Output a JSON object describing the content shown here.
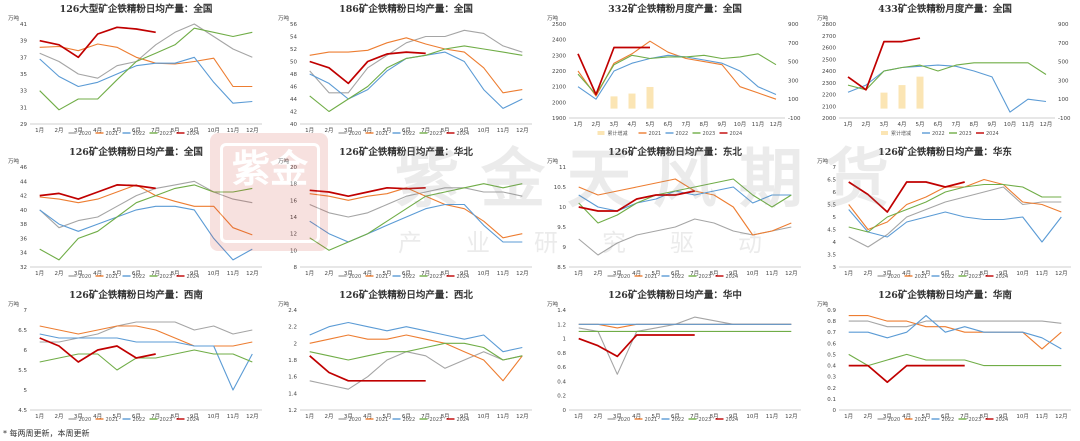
{
  "colors": {
    "2020": "#a5a5a5",
    "2021": "#ed7d31",
    "2022": "#5b9bd5",
    "2023": "#70ad47",
    "2024": "#c00000",
    "bar": "#fbe5b4"
  },
  "months": [
    "1月",
    "2月",
    "3月",
    "4月",
    "5月",
    "6月",
    "7月",
    "8月",
    "9月",
    "10月",
    "11月",
    "12月"
  ],
  "legend_years": [
    "2020",
    "2021",
    "2022",
    "2023",
    "2024"
  ],
  "unit": "万吨",
  "watermark": {
    "main": "紫金天风期货",
    "sub": "产业研究驱动",
    "seal": "紫金"
  },
  "footnote": "* 每两周更新，本周更新",
  "chart_data": [
    {
      "type": "line",
      "title": "126大型矿企铁精粉日均产量：全国",
      "ylim": [
        29,
        41
      ],
      "yticks": [
        29,
        31,
        33,
        35,
        37,
        39,
        41
      ],
      "series": [
        {
          "name": "2020",
          "values": [
            37.5,
            36.5,
            35,
            34.5,
            36,
            36.5,
            38.5,
            40,
            41,
            39.5,
            38,
            37
          ]
        },
        {
          "name": "2021",
          "values": [
            38.2,
            38.3,
            37.8,
            38.6,
            38.2,
            37,
            36.3,
            36.2,
            36.5,
            36.9,
            33.5,
            33.5
          ]
        },
        {
          "name": "2022",
          "values": [
            36.8,
            34.7,
            33.5,
            34,
            35,
            36,
            36.3,
            36.3,
            37,
            34,
            31.5,
            31.7
          ]
        },
        {
          "name": "2023",
          "values": [
            33,
            30.7,
            32,
            32,
            34.3,
            36.5,
            37.5,
            38.5,
            40.5,
            40,
            39.5,
            40
          ]
        },
        {
          "name": "2024",
          "values": [
            39,
            38.5,
            37,
            39.8,
            40.6,
            40.4,
            40
          ]
        }
      ]
    },
    {
      "type": "line",
      "title": "186矿企铁精粉日均产量：全国",
      "ylim": [
        40,
        56
      ],
      "yticks": [
        40,
        42,
        44,
        46,
        48,
        50,
        52,
        54,
        56
      ],
      "series": [
        {
          "name": "2020",
          "values": [
            48.5,
            45,
            45,
            49,
            51,
            53,
            54,
            54,
            55,
            54.5,
            52.5,
            51.5
          ]
        },
        {
          "name": "2021",
          "values": [
            51,
            51.5,
            51.5,
            51.8,
            53,
            53.8,
            52.8,
            52,
            51.5,
            49,
            45,
            45.5
          ]
        },
        {
          "name": "2022",
          "values": [
            48,
            46.5,
            44,
            45.5,
            48.5,
            50.5,
            51,
            51.5,
            50,
            45.5,
            42.5,
            44
          ]
        },
        {
          "name": "2023",
          "values": [
            44.5,
            42,
            44,
            46,
            49,
            50.5,
            51,
            52,
            52.5,
            52,
            51.5,
            51
          ]
        },
        {
          "name": "2024",
          "values": [
            50,
            49,
            46.5,
            50,
            51.2,
            51.5,
            51.3
          ]
        }
      ]
    },
    {
      "type": "bar+line",
      "title": "332矿企铁精粉月度产量：全国",
      "ylim": [
        1900,
        2500
      ],
      "yticks": [
        1900,
        2000,
        2100,
        2200,
        2300,
        2400,
        2500
      ],
      "y2ticks": [
        -100,
        100,
        300,
        500,
        700,
        900
      ],
      "bar_label": "累计增减",
      "bars": [
        0,
        0,
        130,
        160,
        230
      ],
      "series": [
        {
          "name": "2021",
          "values": [
            2200,
            2040,
            2250,
            2310,
            2390,
            2320,
            2280,
            2260,
            2240,
            2100,
            2060,
            2020
          ]
        },
        {
          "name": "2022",
          "values": [
            2100,
            2020,
            2200,
            2250,
            2280,
            2300,
            2290,
            2270,
            2250,
            2200,
            2100,
            2050
          ]
        },
        {
          "name": "2023",
          "values": [
            2180,
            2050,
            2240,
            2300,
            2280,
            2290,
            2290,
            2300,
            2280,
            2290,
            2310,
            2240
          ]
        },
        {
          "name": "2024",
          "values": [
            2310,
            2050,
            2350,
            2350,
            2350
          ]
        }
      ]
    },
    {
      "type": "bar+line",
      "title": "433矿企铁精粉月度产量：全国",
      "ylim": [
        2000,
        2800
      ],
      "yticks": [
        2000,
        2100,
        2200,
        2300,
        2400,
        2500,
        2600,
        2700,
        2800
      ],
      "y2ticks": [
        -100,
        100,
        300,
        500,
        700,
        900
      ],
      "bar_label": "累计增减",
      "bars": [
        0,
        0,
        170,
        250,
        340
      ],
      "series": [
        {
          "name": "2022",
          "values": [
            2220,
            2280,
            2400,
            2430,
            2440,
            2450,
            2440,
            2400,
            2350,
            2050,
            2160,
            2140
          ]
        },
        {
          "name": "2023",
          "values": [
            2280,
            2240,
            2400,
            2430,
            2450,
            2400,
            2450,
            2470,
            2470,
            2470,
            2470,
            2370
          ]
        },
        {
          "name": "2024",
          "values": [
            2350,
            2240,
            2650,
            2650,
            2680
          ]
        }
      ]
    },
    {
      "type": "line",
      "title": "126矿企铁精粉日均产量：全国",
      "ylim": [
        32,
        46
      ],
      "yticks": [
        32,
        34,
        36,
        38,
        40,
        42,
        44,
        46
      ],
      "series": [
        {
          "name": "2020",
          "values": [
            40,
            37.5,
            38.5,
            39,
            40.5,
            42,
            43,
            43.5,
            44,
            42.5,
            41.5,
            41
          ]
        },
        {
          "name": "2021",
          "values": [
            41.8,
            41.5,
            41,
            41.5,
            42.5,
            43.5,
            42,
            41.2,
            40.5,
            40.5,
            37.5,
            36.5
          ]
        },
        {
          "name": "2022",
          "values": [
            40,
            38,
            37,
            38,
            39,
            40,
            40.5,
            40.5,
            40,
            36,
            33,
            34.5
          ]
        },
        {
          "name": "2023",
          "values": [
            34.5,
            33,
            36,
            37,
            39,
            41,
            42,
            43,
            43.5,
            42.5,
            42.5,
            43
          ]
        },
        {
          "name": "2024",
          "values": [
            42,
            42.3,
            41.5,
            42.5,
            43.5,
            43.4,
            43
          ]
        }
      ]
    },
    {
      "type": "line",
      "title": "126矿企铁精粉日均产量：华北",
      "ylim": [
        8,
        20
      ],
      "yticks": [
        8,
        10,
        12,
        14,
        16,
        18,
        20
      ],
      "series": [
        {
          "name": "2020",
          "values": [
            15.5,
            14.5,
            14,
            14.5,
            15.5,
            16.5,
            17,
            17.5,
            17.5,
            17,
            17,
            16.5
          ]
        },
        {
          "name": "2021",
          "values": [
            16.8,
            16.5,
            16,
            16.5,
            16.8,
            17.5,
            16.5,
            15.5,
            15,
            13.5,
            11.5,
            12
          ]
        },
        {
          "name": "2022",
          "values": [
            13.5,
            12,
            11,
            12,
            13,
            14,
            15,
            15.5,
            15.5,
            13,
            11,
            11
          ]
        },
        {
          "name": "2023",
          "values": [
            11.5,
            10,
            11,
            12,
            13.5,
            15,
            16.5,
            17,
            17.5,
            18,
            17.5,
            18
          ]
        },
        {
          "name": "2024",
          "values": [
            17.2,
            17,
            16.5,
            17,
            17.5,
            17.4,
            17.5
          ]
        }
      ]
    },
    {
      "type": "line",
      "title": "126矿企铁精粉日均产量：东北",
      "ylim": [
        8.5,
        11
      ],
      "yticks": [
        8.5,
        9,
        9.5,
        10,
        10.5,
        11
      ],
      "series": [
        {
          "name": "2020",
          "values": [
            9.2,
            8.8,
            9.1,
            9.3,
            9.4,
            9.5,
            9.7,
            9.6,
            9.4,
            9.3,
            9.4,
            9.5
          ]
        },
        {
          "name": "2021",
          "values": [
            10.5,
            10.3,
            10.4,
            10.5,
            10.6,
            10.7,
            10.4,
            10.3,
            10,
            9.3,
            9.4,
            9.6
          ]
        },
        {
          "name": "2022",
          "values": [
            10.3,
            10,
            9.9,
            10.1,
            10.2,
            10.4,
            10.3,
            10.4,
            10.5,
            10.1,
            10.3,
            10.3
          ]
        },
        {
          "name": "2023",
          "values": [
            10.1,
            9.6,
            9.8,
            10.1,
            10.3,
            10.4,
            10.5,
            10.6,
            10.7,
            10.3,
            10,
            10.3
          ]
        },
        {
          "name": "2024",
          "values": [
            10,
            9.9,
            9.9,
            10.2,
            10.3,
            10.3,
            10.4
          ]
        }
      ]
    },
    {
      "type": "line",
      "title": "126矿企铁精粉日均产量：华东",
      "ylim": [
        3,
        7
      ],
      "yticks": [
        3,
        3.5,
        4,
        4.5,
        5,
        5.5,
        6,
        6.5,
        7
      ],
      "series": [
        {
          "name": "2020",
          "values": [
            4.2,
            3.8,
            4.3,
            5,
            5.3,
            5.6,
            5.8,
            6,
            6.2,
            5.5,
            5.6,
            5.6
          ]
        },
        {
          "name": "2021",
          "values": [
            5.5,
            4.5,
            4.8,
            5.5,
            5.8,
            6.2,
            6.2,
            6.5,
            6.3,
            5.6,
            5.5,
            5.2
          ]
        },
        {
          "name": "2022",
          "values": [
            5.3,
            4.4,
            4.2,
            4.8,
            5,
            5.2,
            5,
            4.9,
            4.9,
            5,
            4,
            5
          ]
        },
        {
          "name": "2023",
          "values": [
            4.6,
            4.4,
            5,
            5.3,
            5.6,
            6,
            6.2,
            6.3,
            6.3,
            6.2,
            5.8,
            5.8
          ]
        },
        {
          "name": "2024",
          "values": [
            6.4,
            5.9,
            5.2,
            6.4,
            6.4,
            6.2,
            6.4
          ]
        }
      ]
    },
    {
      "type": "line",
      "title": "126矿企铁精粉日均产量：西南",
      "ylim": [
        4.5,
        7
      ],
      "yticks": [
        4.5,
        5,
        5.5,
        6,
        6.5,
        7
      ],
      "series": [
        {
          "name": "2020",
          "values": [
            6.2,
            6.2,
            6.3,
            6.4,
            6.6,
            6.7,
            6.7,
            6.7,
            6.5,
            6.6,
            6.4,
            6.5
          ]
        },
        {
          "name": "2021",
          "values": [
            6.6,
            6.5,
            6.4,
            6.5,
            6.6,
            6.6,
            6.5,
            6.3,
            6.1,
            6.1,
            6.1,
            6.2
          ]
        },
        {
          "name": "2022",
          "values": [
            6.4,
            6.3,
            6.3,
            6.3,
            6.3,
            6.2,
            6.2,
            6.2,
            6.1,
            6.1,
            5,
            5.9
          ]
        },
        {
          "name": "2023",
          "values": [
            5.7,
            5.8,
            5.9,
            5.9,
            5.5,
            5.8,
            5.8,
            5.9,
            6,
            5.9,
            5.9,
            5.7
          ]
        },
        {
          "name": "2024",
          "values": [
            6.3,
            6.1,
            5.7,
            6,
            6.1,
            5.8,
            5.9
          ]
        }
      ]
    },
    {
      "type": "line",
      "title": "126矿企铁精粉日均产量：西北",
      "ylim": [
        1.2,
        2.4
      ],
      "yticks": [
        1.2,
        1.4,
        1.6,
        1.8,
        2,
        2.2,
        2.4
      ],
      "series": [
        {
          "name": "2020",
          "values": [
            1.55,
            1.5,
            1.45,
            1.6,
            1.8,
            1.9,
            1.85,
            1.7,
            1.8,
            1.9,
            1.8,
            1.85
          ]
        },
        {
          "name": "2021",
          "values": [
            2,
            2.05,
            2.1,
            2.05,
            2.05,
            2.1,
            2.05,
            2,
            1.9,
            1.8,
            1.55,
            1.85
          ]
        },
        {
          "name": "2022",
          "values": [
            2.1,
            2.2,
            2.25,
            2.2,
            2.15,
            2.2,
            2.15,
            2.1,
            2.05,
            2.1,
            1.9,
            1.95
          ]
        },
        {
          "name": "2023",
          "values": [
            1.9,
            1.85,
            1.8,
            1.85,
            1.9,
            1.9,
            1.95,
            2,
            2,
            1.95,
            1.8,
            1.85
          ]
        },
        {
          "name": "2024",
          "values": [
            1.85,
            1.65,
            1.55,
            1.55,
            1.55,
            1.55,
            1.55
          ]
        }
      ]
    },
    {
      "type": "line",
      "title": "126矿企铁精粉日均产量：华中",
      "ylim": [
        0,
        1.4
      ],
      "yticks": [
        0,
        0.2,
        0.4,
        0.6,
        0.8,
        1,
        1.2,
        1.4
      ],
      "series": [
        {
          "name": "2020",
          "values": [
            1.15,
            1.1,
            0.5,
            1.1,
            1.15,
            1.2,
            1.3,
            1.25,
            1.2,
            1.2,
            1.2,
            1.2
          ]
        },
        {
          "name": "2021",
          "values": [
            1.2,
            1.2,
            1.15,
            1.2,
            1.2,
            1.2,
            1.2,
            1.2,
            1.2,
            1.2,
            1.2,
            1.2
          ]
        },
        {
          "name": "2022",
          "values": [
            1.2,
            1.2,
            1.2,
            1.2,
            1.2,
            1.2,
            1.2,
            1.2,
            1.2,
            1.2,
            1.2,
            1.2
          ]
        },
        {
          "name": "2023",
          "values": [
            1.1,
            1.1,
            1.1,
            1.1,
            1.1,
            1.1,
            1.1,
            1.1,
            1.1,
            1.1,
            1.1,
            1.1
          ]
        },
        {
          "name": "2024",
          "values": [
            1,
            0.9,
            0.75,
            1.05,
            1.05,
            1.05,
            1.05
          ]
        }
      ]
    },
    {
      "type": "line",
      "title": "126矿企铁精粉日均产量：华南",
      "ylim": [
        0,
        0.9
      ],
      "yticks": [
        0,
        0.1,
        0.2,
        0.3,
        0.4,
        0.5,
        0.6,
        0.7,
        0.8,
        0.9
      ],
      "series": [
        {
          "name": "2020",
          "values": [
            0.8,
            0.8,
            0.75,
            0.75,
            0.8,
            0.8,
            0.8,
            0.8,
            0.8,
            0.8,
            0.8,
            0.78
          ]
        },
        {
          "name": "2021",
          "values": [
            0.85,
            0.85,
            0.8,
            0.8,
            0.75,
            0.75,
            0.7,
            0.7,
            0.7,
            0.7,
            0.55,
            0.7
          ]
        },
        {
          "name": "2022",
          "values": [
            0.7,
            0.7,
            0.65,
            0.7,
            0.85,
            0.7,
            0.75,
            0.7,
            0.7,
            0.7,
            0.65,
            0.55
          ]
        },
        {
          "name": "2023",
          "values": [
            0.5,
            0.4,
            0.45,
            0.5,
            0.45,
            0.45,
            0.45,
            0.4,
            0.4,
            0.4,
            0.4,
            0.4
          ]
        },
        {
          "name": "2024",
          "values": [
            0.4,
            0.4,
            0.25,
            0.4,
            0.4,
            0.4,
            0.4
          ]
        }
      ]
    }
  ]
}
